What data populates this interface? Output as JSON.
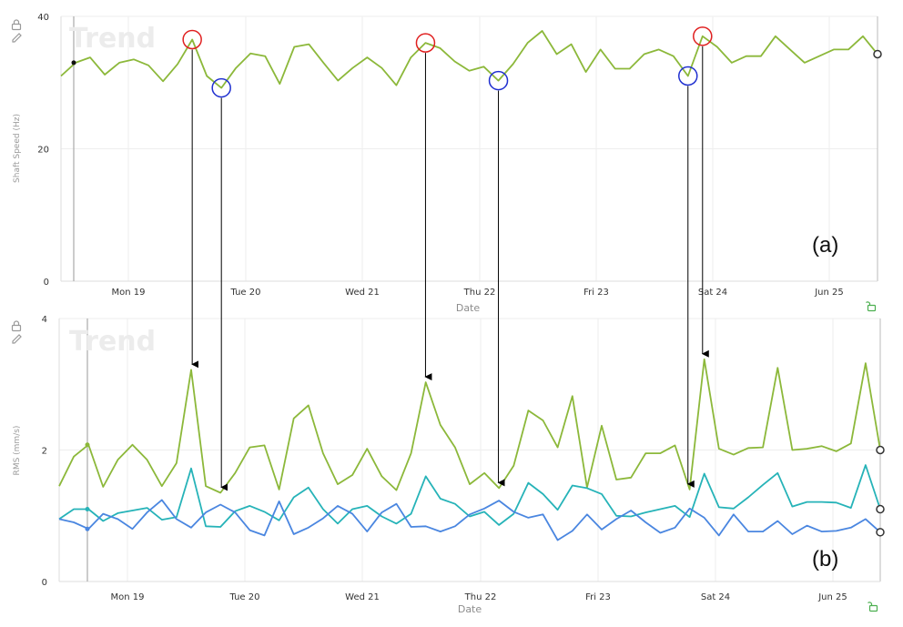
{
  "chart_data": [
    {
      "id": "a",
      "type": "line",
      "panel_label": "(a)",
      "watermark": "Trend",
      "ylabel": "Shaft Speed (Hz)",
      "xlabel": "Date",
      "ylim": [
        0,
        40
      ],
      "yticks": [
        "0",
        "20",
        "40"
      ],
      "xticks": [
        "Mon 19",
        "Tue 20",
        "Wed 21",
        "Thu 22",
        "Fri 23",
        "Sat 24",
        "Jun 25"
      ],
      "grid": true,
      "series": [
        {
          "color": "#8cb83a",
          "values": [
            31,
            33,
            33.8,
            31.2,
            33,
            33.5,
            32.6,
            30.2,
            32.8,
            36.5,
            31,
            29.2,
            32.2,
            34.4,
            34,
            29.8,
            35.4,
            35.8,
            33,
            30.3,
            32.2,
            33.8,
            32.2,
            29.6,
            33.8,
            36,
            35.2,
            33.2,
            31.8,
            32.4,
            30.3,
            32.8,
            36,
            37.8,
            34.3,
            35.8,
            31.6,
            35,
            32.1,
            32.1,
            34.3,
            35,
            34,
            31,
            37,
            35.4,
            33,
            34,
            34,
            37,
            35,
            33,
            34,
            35,
            35,
            37,
            34.3
          ]
        }
      ],
      "markers": {
        "peaks_red": [
          "peak 1",
          "peak 2",
          "peak 3"
        ],
        "troughs_blue": [
          "trough 1",
          "trough 2",
          "trough 3"
        ]
      }
    },
    {
      "id": "b",
      "type": "line",
      "panel_label": "(b)",
      "watermark": "Trend",
      "ylabel": "RMS (mm/s)",
      "xlabel": "Date",
      "ylim": [
        0,
        4
      ],
      "yticks": [
        "0",
        "2",
        "4"
      ],
      "xticks": [
        "Mon 19",
        "Tue 20",
        "Wed 21",
        "Thu 22",
        "Fri 23",
        "Sat 24",
        "Jun 25"
      ],
      "grid": true,
      "series": [
        {
          "color": "#8cb83a",
          "values": [
            1.45,
            1.9,
            2.08,
            1.44,
            1.85,
            2.08,
            1.85,
            1.45,
            1.8,
            3.22,
            1.45,
            1.35,
            1.65,
            2.04,
            2.07,
            1.4,
            2.48,
            2.68,
            1.95,
            1.48,
            1.62,
            2.02,
            1.6,
            1.39,
            1.95,
            3.03,
            2.38,
            2.04,
            1.48,
            1.65,
            1.42,
            1.76,
            2.6,
            2.45,
            2.04,
            2.82,
            1.43,
            2.37,
            1.55,
            1.58,
            1.95,
            1.95,
            2.07,
            1.4,
            3.38,
            2.02,
            1.93,
            2.03,
            2.04,
            3.25,
            2.0,
            2.02,
            2.06,
            1.98,
            2.1,
            3.32,
            2.0
          ]
        },
        {
          "color": "#26b3b8",
          "values": [
            0.95,
            1.1,
            1.1,
            0.92,
            1.04,
            1.08,
            1.12,
            0.94,
            0.98,
            1.72,
            0.84,
            0.83,
            1.07,
            1.15,
            1.06,
            0.93,
            1.28,
            1.43,
            1.1,
            0.88,
            1.1,
            1.15,
            0.99,
            0.88,
            1.03,
            1.6,
            1.26,
            1.18,
            0.99,
            1.06,
            0.86,
            1.03,
            1.5,
            1.33,
            1.09,
            1.46,
            1.42,
            1.33,
            1.0,
            0.99,
            1.05,
            1.1,
            1.15,
            0.98,
            1.64,
            1.13,
            1.11,
            1.28,
            1.47,
            1.65,
            1.14,
            1.21,
            1.21,
            1.2,
            1.12,
            1.77,
            1.1
          ]
        },
        {
          "color": "#4a86e0",
          "values": [
            0.95,
            0.9,
            0.8,
            1.03,
            0.95,
            0.8,
            1.05,
            1.24,
            0.95,
            0.82,
            1.05,
            1.17,
            1.05,
            0.78,
            0.7,
            1.22,
            0.72,
            0.82,
            0.96,
            1.15,
            1.03,
            0.76,
            1.05,
            1.18,
            0.83,
            0.84,
            0.76,
            0.84,
            1.02,
            1.11,
            1.23,
            1.06,
            0.97,
            1.02,
            0.63,
            0.77,
            1.02,
            0.79,
            0.95,
            1.08,
            0.9,
            0.74,
            0.82,
            1.11,
            0.97,
            0.7,
            1.02,
            0.76,
            0.76,
            0.92,
            0.72,
            0.85,
            0.76,
            0.77,
            0.82,
            0.95,
            0.75
          ]
        }
      ]
    }
  ],
  "ui": {
    "lock_icon": "lock-icon",
    "edit_icon": "pencil-icon",
    "unlock_icon": "green-unlock-icon"
  }
}
